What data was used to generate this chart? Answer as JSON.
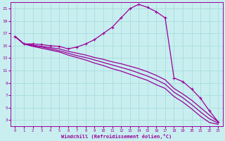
{
  "bg_color": "#c8eef0",
  "grid_color": "#aadddd",
  "line_color": "#990099",
  "xlabel": "Windchill (Refroidissement éolien,°C)",
  "xlim": [
    -0.5,
    23.5
  ],
  "ylim": [
    2.0,
    22.0
  ],
  "xticks": [
    0,
    1,
    2,
    3,
    4,
    5,
    6,
    7,
    8,
    9,
    10,
    11,
    12,
    13,
    14,
    15,
    16,
    17,
    18,
    19,
    20,
    21,
    22,
    23
  ],
  "yticks": [
    3,
    5,
    7,
    9,
    11,
    13,
    15,
    17,
    19,
    21
  ],
  "curve1_x": [
    0,
    1,
    2,
    3,
    4,
    5,
    6,
    7,
    8,
    9,
    10,
    11,
    12,
    13,
    14,
    15,
    16,
    17,
    18,
    19,
    20,
    21,
    22,
    23
  ],
  "curve1_y": [
    16.5,
    15.3,
    15.3,
    15.2,
    15.0,
    14.9,
    14.5,
    14.8,
    15.3,
    16.0,
    17.0,
    18.0,
    19.5,
    21.0,
    21.7,
    21.2,
    20.5,
    19.5,
    9.8,
    9.2,
    8.0,
    6.5,
    4.5,
    2.7
  ],
  "curve2_x": [
    0,
    1,
    2,
    3,
    4,
    5,
    6,
    7,
    8,
    9,
    10,
    11,
    12,
    13,
    14,
    15,
    16,
    17,
    18,
    19,
    20,
    21,
    22,
    23
  ],
  "curve2_y": [
    16.5,
    15.3,
    15.1,
    14.9,
    14.7,
    14.5,
    14.1,
    13.8,
    13.5,
    13.1,
    12.8,
    12.4,
    12.1,
    11.7,
    11.3,
    10.8,
    10.2,
    9.5,
    8.1,
    7.2,
    6.2,
    5.0,
    3.8,
    2.7
  ],
  "curve3_x": [
    0,
    1,
    2,
    3,
    4,
    5,
    6,
    7,
    8,
    9,
    10,
    11,
    12,
    13,
    14,
    15,
    16,
    17,
    18,
    19,
    20,
    21,
    22,
    23
  ],
  "curve3_y": [
    16.5,
    15.3,
    15.0,
    14.8,
    14.5,
    14.2,
    13.8,
    13.4,
    13.1,
    12.7,
    12.3,
    11.9,
    11.5,
    11.1,
    10.6,
    10.1,
    9.5,
    8.8,
    7.5,
    6.6,
    5.5,
    4.3,
    3.2,
    2.5
  ],
  "curve4_x": [
    0,
    1,
    2,
    3,
    4,
    5,
    6,
    7,
    8,
    9,
    10,
    11,
    12,
    13,
    14,
    15,
    16,
    17,
    18,
    19,
    20,
    21,
    22,
    23
  ],
  "curve4_y": [
    16.5,
    15.3,
    14.9,
    14.6,
    14.3,
    14.0,
    13.5,
    13.1,
    12.7,
    12.2,
    11.8,
    11.3,
    10.9,
    10.4,
    9.9,
    9.4,
    8.7,
    8.1,
    6.8,
    5.9,
    4.8,
    3.6,
    2.6,
    2.3
  ]
}
